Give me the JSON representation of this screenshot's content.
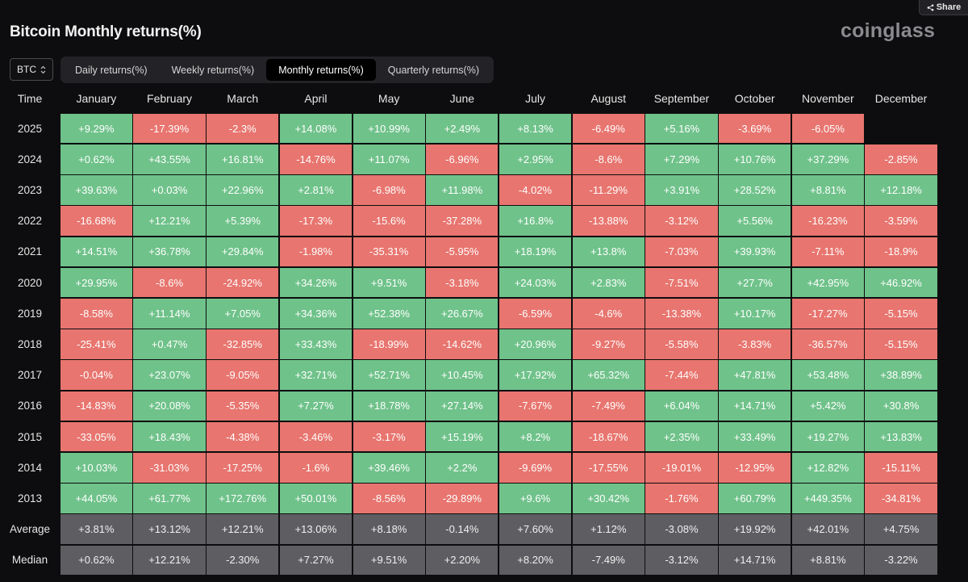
{
  "share_label": "Share",
  "title": "Bitcoin Monthly returns(%)",
  "brand": "coinglass",
  "asset_select": {
    "value": "BTC"
  },
  "tabs": [
    {
      "label": "Daily returns(%)",
      "active": false
    },
    {
      "label": "Weekly returns(%)",
      "active": false
    },
    {
      "label": "Monthly returns(%)",
      "active": true
    },
    {
      "label": "Quarterly returns(%)",
      "active": false
    }
  ],
  "colors": {
    "positive": "#6fc28a",
    "negative": "#e8756f",
    "summary": "#5e5e62"
  },
  "chart_data": {
    "type": "heatmap",
    "corner_label": "Time",
    "columns": [
      "January",
      "February",
      "March",
      "April",
      "May",
      "June",
      "July",
      "August",
      "September",
      "October",
      "November",
      "December"
    ],
    "rows": [
      {
        "label": "2025",
        "values": [
          "+9.29%",
          "-17.39%",
          "-2.3%",
          "+14.08%",
          "+10.99%",
          "+2.49%",
          "+8.13%",
          "-6.49%",
          "+5.16%",
          "-3.69%",
          "-6.05%",
          ""
        ]
      },
      {
        "label": "2024",
        "values": [
          "+0.62%",
          "+43.55%",
          "+16.81%",
          "-14.76%",
          "+11.07%",
          "-6.96%",
          "+2.95%",
          "-8.6%",
          "+7.29%",
          "+10.76%",
          "+37.29%",
          "-2.85%"
        ]
      },
      {
        "label": "2023",
        "values": [
          "+39.63%",
          "+0.03%",
          "+22.96%",
          "+2.81%",
          "-6.98%",
          "+11.98%",
          "-4.02%",
          "-11.29%",
          "+3.91%",
          "+28.52%",
          "+8.81%",
          "+12.18%"
        ]
      },
      {
        "label": "2022",
        "values": [
          "-16.68%",
          "+12.21%",
          "+5.39%",
          "-17.3%",
          "-15.6%",
          "-37.28%",
          "+16.8%",
          "-13.88%",
          "-3.12%",
          "+5.56%",
          "-16.23%",
          "-3.59%"
        ]
      },
      {
        "label": "2021",
        "values": [
          "+14.51%",
          "+36.78%",
          "+29.84%",
          "-1.98%",
          "-35.31%",
          "-5.95%",
          "+18.19%",
          "+13.8%",
          "-7.03%",
          "+39.93%",
          "-7.11%",
          "-18.9%"
        ]
      },
      {
        "label": "2020",
        "values": [
          "+29.95%",
          "-8.6%",
          "-24.92%",
          "+34.26%",
          "+9.51%",
          "-3.18%",
          "+24.03%",
          "+2.83%",
          "-7.51%",
          "+27.7%",
          "+42.95%",
          "+46.92%"
        ]
      },
      {
        "label": "2019",
        "values": [
          "-8.58%",
          "+11.14%",
          "+7.05%",
          "+34.36%",
          "+52.38%",
          "+26.67%",
          "-6.59%",
          "-4.6%",
          "-13.38%",
          "+10.17%",
          "-17.27%",
          "-5.15%"
        ]
      },
      {
        "label": "2018",
        "values": [
          "-25.41%",
          "+0.47%",
          "-32.85%",
          "+33.43%",
          "-18.99%",
          "-14.62%",
          "+20.96%",
          "-9.27%",
          "-5.58%",
          "-3.83%",
          "-36.57%",
          "-5.15%"
        ]
      },
      {
        "label": "2017",
        "values": [
          "-0.04%",
          "+23.07%",
          "-9.05%",
          "+32.71%",
          "+52.71%",
          "+10.45%",
          "+17.92%",
          "+65.32%",
          "-7.44%",
          "+47.81%",
          "+53.48%",
          "+38.89%"
        ]
      },
      {
        "label": "2016",
        "values": [
          "-14.83%",
          "+20.08%",
          "-5.35%",
          "+7.27%",
          "+18.78%",
          "+27.14%",
          "-7.67%",
          "-7.49%",
          "+6.04%",
          "+14.71%",
          "+5.42%",
          "+30.8%"
        ]
      },
      {
        "label": "2015",
        "values": [
          "-33.05%",
          "+18.43%",
          "-4.38%",
          "-3.46%",
          "-3.17%",
          "+15.19%",
          "+8.2%",
          "-18.67%",
          "+2.35%",
          "+33.49%",
          "+19.27%",
          "+13.83%"
        ]
      },
      {
        "label": "2014",
        "values": [
          "+10.03%",
          "-31.03%",
          "-17.25%",
          "-1.6%",
          "+39.46%",
          "+2.2%",
          "-9.69%",
          "-17.55%",
          "-19.01%",
          "-12.95%",
          "+12.82%",
          "-15.11%"
        ]
      },
      {
        "label": "2013",
        "values": [
          "+44.05%",
          "+61.77%",
          "+172.76%",
          "+50.01%",
          "-8.56%",
          "-29.89%",
          "+9.6%",
          "+30.42%",
          "-1.76%",
          "+60.79%",
          "+449.35%",
          "-34.81%"
        ]
      }
    ],
    "summary_rows": [
      {
        "label": "Average",
        "values": [
          "+3.81%",
          "+13.12%",
          "+12.21%",
          "+13.06%",
          "+8.18%",
          "-0.14%",
          "+7.60%",
          "+1.12%",
          "-3.08%",
          "+19.92%",
          "+42.01%",
          "+4.75%"
        ]
      },
      {
        "label": "Median",
        "values": [
          "+0.62%",
          "+12.21%",
          "-2.30%",
          "+7.27%",
          "+9.51%",
          "+2.20%",
          "+8.20%",
          "-7.49%",
          "-3.12%",
          "+14.71%",
          "+8.81%",
          "-3.22%"
        ]
      }
    ]
  }
}
